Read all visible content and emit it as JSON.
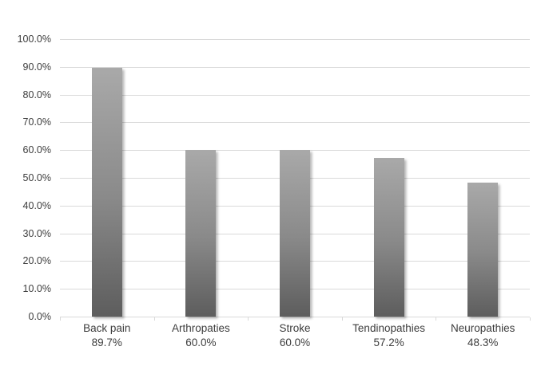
{
  "chart_data": {
    "type": "bar",
    "title": "",
    "xlabel": "",
    "ylabel": "",
    "categories": [
      "Back pain",
      "Arthropaties",
      "Stroke",
      "Tendinopathies",
      "Neuropathies"
    ],
    "values": [
      89.7,
      60.0,
      60.0,
      57.2,
      48.3
    ],
    "value_labels": [
      "89.7%",
      "60.0%",
      "60.0%",
      "57.2%",
      "48.3%"
    ],
    "y_axis": {
      "min": 0,
      "max": 100,
      "step": 10,
      "tick_labels": [
        "0.0%",
        "10.0%",
        "20.0%",
        "30.0%",
        "40.0%",
        "50.0%",
        "60.0%",
        "70.0%",
        "80.0%",
        "90.0%",
        "100.0%"
      ]
    },
    "grid": "horizontal",
    "legend": false,
    "colors": {
      "background": "#ffffff",
      "gridline": "#d9d9d9",
      "label_text": "#3d3d3d",
      "bar_gradient_top": "#a9a9a9",
      "bar_gradient_bottom": "#5d5d5d"
    }
  }
}
